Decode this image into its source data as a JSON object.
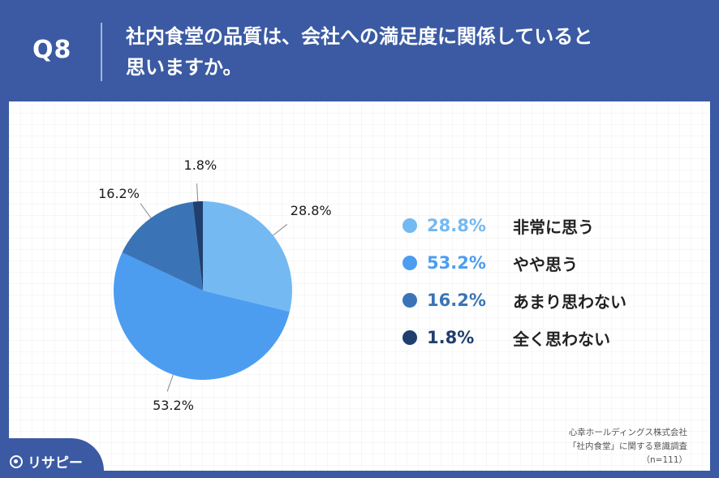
{
  "header": {
    "question_no": "Q8",
    "question_line1": "社内食堂の品質は、会社への満足度に関係していると",
    "question_line2": "思いますか。"
  },
  "chart_data": {
    "type": "pie",
    "title": "",
    "categories": [
      "非常に思う",
      "やや思う",
      "あまり思わない",
      "全く思わない"
    ],
    "values": [
      28.8,
      53.2,
      16.2,
      1.8
    ],
    "labels": [
      "28.8%",
      "53.2%",
      "16.2%",
      "1.8%"
    ],
    "colors": [
      "#74b9f2",
      "#4c9df0",
      "#3a74b6",
      "#1f3f6e"
    ],
    "legend_placement": "right"
  },
  "legend": {
    "items": [
      {
        "value": "28.8%",
        "label": "非常に思う"
      },
      {
        "value": "53.2%",
        "label": "やや思う"
      },
      {
        "value": "16.2%",
        "label": "あまり思わない"
      },
      {
        "value": "1.8%",
        "label": "全く思わない"
      }
    ]
  },
  "source": {
    "line1": "心幸ホールディングス株式会社",
    "line2": "「社内食堂」に関する意識調査",
    "line3": "（n=111）"
  },
  "logo": {
    "icon": "map-pin-icon",
    "text": "リサピー"
  }
}
